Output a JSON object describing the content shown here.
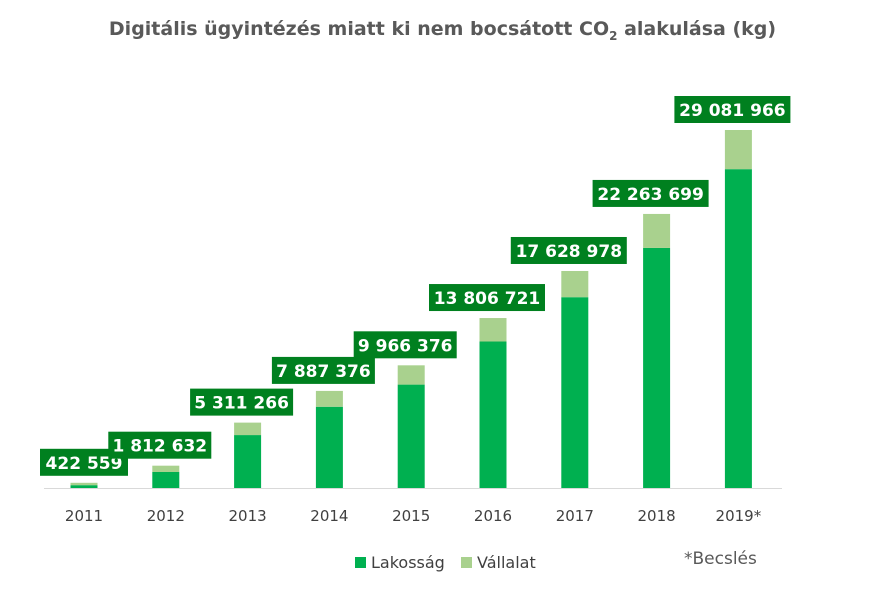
{
  "title_main": "Digitális ügyintézés miatt ki nem bocsátott CO",
  "title_sub": "2",
  "title_end": " alakulása (kg)",
  "note": "*Becslés",
  "colors": {
    "lakossag": "#00B050",
    "vallalat": "#A9D18E",
    "label_bg": "#00801F"
  },
  "chart_data": {
    "type": "bar",
    "stacked": true,
    "categories": [
      "2011",
      "2012",
      "2013",
      "2014",
      "2015",
      "2016",
      "2017",
      "2018",
      "2019*"
    ],
    "series": [
      {
        "name": "Lakosság",
        "values": [
          230000,
          1300000,
          4300000,
          6600000,
          8400000,
          11900000,
          15500000,
          19500000,
          25900000
        ]
      },
      {
        "name": "Vállalat",
        "values": [
          192559,
          512632,
          1011266,
          1287376,
          1566376,
          1906721,
          2128978,
          2763699,
          3181966
        ]
      }
    ],
    "totals": [
      422559,
      1812632,
      5311266,
      7887376,
      9966376,
      13806721,
      17628978,
      22263699,
      29081966
    ],
    "total_labels": [
      "422 559",
      "1 812 632",
      "5 311 266",
      "7 887 376",
      "9 966 376",
      "13 806 721",
      "17 628 978",
      "22 263 699",
      "29 081 966"
    ],
    "legend_position": "bottom",
    "grid": false
  }
}
